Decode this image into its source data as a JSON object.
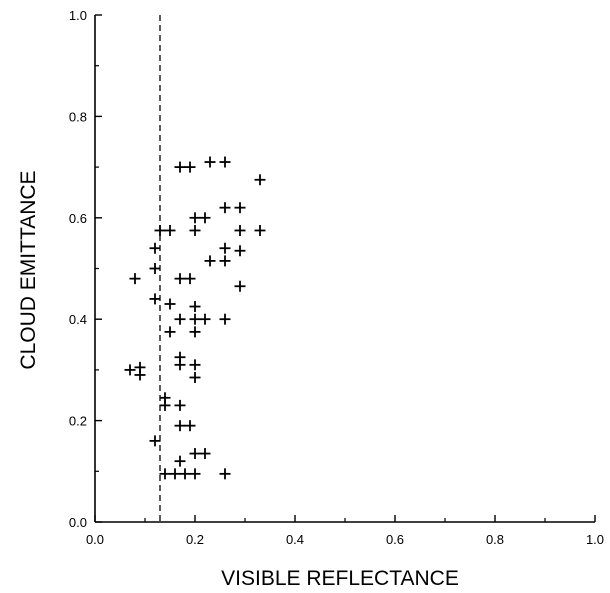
{
  "chart_data": {
    "type": "scatter",
    "title": "",
    "xlabel": "VISIBLE REFLECTANCE",
    "ylabel": "CLOUD EMITTANCE",
    "xlim": [
      0.0,
      1.0
    ],
    "ylim": [
      0.0,
      1.0
    ],
    "x_ticks": [
      "0.0",
      "0.2",
      "0.4",
      "0.6",
      "0.8",
      "1.0"
    ],
    "y_ticks": [
      "0.0",
      "0.2",
      "0.4",
      "0.6",
      "0.8",
      "1.0"
    ],
    "grid": false,
    "marker": "plus",
    "threshold_line": {
      "orientation": "vertical",
      "x": 0.13,
      "style": "dashed"
    },
    "points": [
      {
        "x": 0.17,
        "y": 0.7
      },
      {
        "x": 0.19,
        "y": 0.7
      },
      {
        "x": 0.23,
        "y": 0.71
      },
      {
        "x": 0.26,
        "y": 0.71
      },
      {
        "x": 0.33,
        "y": 0.675
      },
      {
        "x": 0.26,
        "y": 0.62
      },
      {
        "x": 0.29,
        "y": 0.62
      },
      {
        "x": 0.2,
        "y": 0.6
      },
      {
        "x": 0.22,
        "y": 0.6
      },
      {
        "x": 0.13,
        "y": 0.575
      },
      {
        "x": 0.15,
        "y": 0.575
      },
      {
        "x": 0.2,
        "y": 0.575
      },
      {
        "x": 0.29,
        "y": 0.575
      },
      {
        "x": 0.33,
        "y": 0.575
      },
      {
        "x": 0.12,
        "y": 0.54
      },
      {
        "x": 0.26,
        "y": 0.54
      },
      {
        "x": 0.29,
        "y": 0.535
      },
      {
        "x": 0.23,
        "y": 0.515
      },
      {
        "x": 0.26,
        "y": 0.515
      },
      {
        "x": 0.12,
        "y": 0.5
      },
      {
        "x": 0.08,
        "y": 0.48
      },
      {
        "x": 0.17,
        "y": 0.48
      },
      {
        "x": 0.19,
        "y": 0.48
      },
      {
        "x": 0.29,
        "y": 0.465
      },
      {
        "x": 0.12,
        "y": 0.44
      },
      {
        "x": 0.15,
        "y": 0.43
      },
      {
        "x": 0.2,
        "y": 0.425
      },
      {
        "x": 0.17,
        "y": 0.4
      },
      {
        "x": 0.2,
        "y": 0.4
      },
      {
        "x": 0.22,
        "y": 0.4
      },
      {
        "x": 0.26,
        "y": 0.4
      },
      {
        "x": 0.15,
        "y": 0.375
      },
      {
        "x": 0.2,
        "y": 0.375
      },
      {
        "x": 0.17,
        "y": 0.325
      },
      {
        "x": 0.17,
        "y": 0.31
      },
      {
        "x": 0.2,
        "y": 0.31
      },
      {
        "x": 0.07,
        "y": 0.3
      },
      {
        "x": 0.09,
        "y": 0.305
      },
      {
        "x": 0.09,
        "y": 0.29
      },
      {
        "x": 0.2,
        "y": 0.285
      },
      {
        "x": 0.14,
        "y": 0.245
      },
      {
        "x": 0.14,
        "y": 0.23
      },
      {
        "x": 0.17,
        "y": 0.23
      },
      {
        "x": 0.17,
        "y": 0.19
      },
      {
        "x": 0.19,
        "y": 0.19
      },
      {
        "x": 0.12,
        "y": 0.16
      },
      {
        "x": 0.2,
        "y": 0.135
      },
      {
        "x": 0.22,
        "y": 0.135
      },
      {
        "x": 0.17,
        "y": 0.12
      },
      {
        "x": 0.14,
        "y": 0.095
      },
      {
        "x": 0.16,
        "y": 0.095
      },
      {
        "x": 0.18,
        "y": 0.095
      },
      {
        "x": 0.2,
        "y": 0.095
      },
      {
        "x": 0.26,
        "y": 0.095
      }
    ]
  }
}
